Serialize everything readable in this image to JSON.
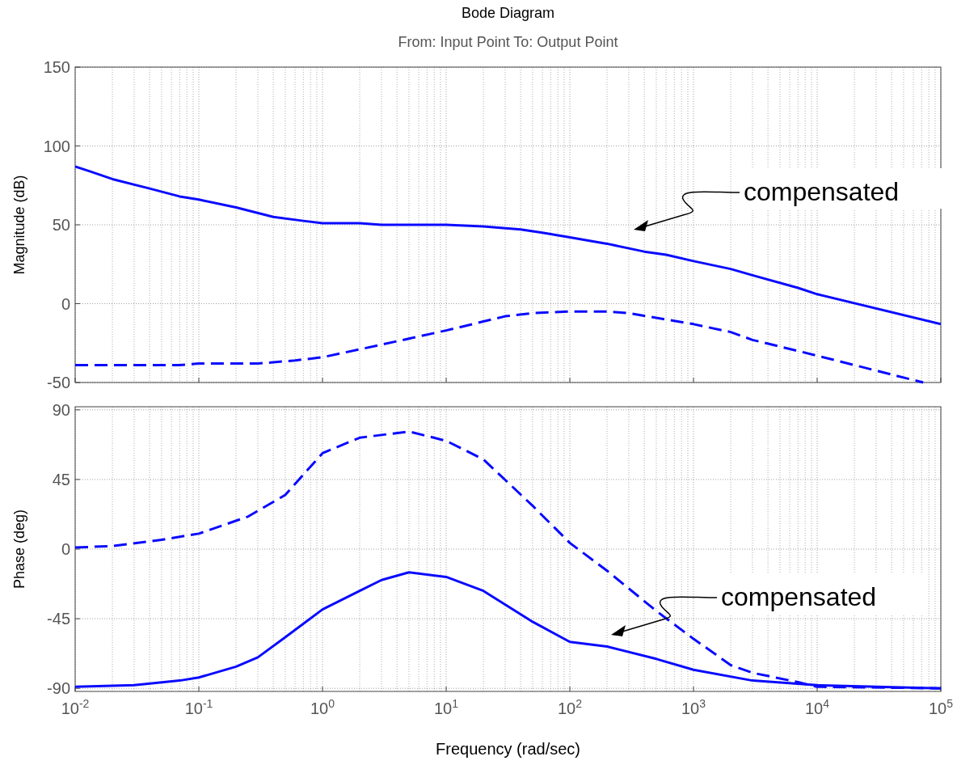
{
  "chart_data": [
    {
      "type": "line",
      "title": "Bode Diagram",
      "subtitle": "From: Input Point  To: Output Point",
      "ylabel": "Magnitude (dB)",
      "log": "x",
      "grid": true,
      "tick_labels": "y",
      "line_style": "solid",
      "xlim": [
        0.01,
        100000
      ],
      "xticks": [
        {
          "value": 0.01,
          "label": null
        },
        {
          "value": 0.1,
          "label": null
        },
        {
          "value": 1,
          "label": null
        },
        {
          "value": 10,
          "label": null
        },
        {
          "value": 100,
          "label": null
        },
        {
          "value": 1000,
          "label": null
        },
        {
          "value": 10000,
          "label": null
        },
        {
          "value": 100000,
          "label": null
        }
      ],
      "ylim": [
        -50,
        150
      ],
      "yticks": [
        -50,
        0,
        50,
        100,
        150
      ],
      "series": [
        {
          "color": "#0a0aff",
          "x": [
            0.01,
            0.013,
            0.02,
            0.04,
            0.07,
            0.1,
            0.2,
            0.4,
            0.7,
            1,
            2,
            3,
            10,
            20,
            40,
            60,
            100,
            200,
            400,
            600,
            1000,
            2000,
            3000,
            7000,
            10000,
            100000
          ],
          "values": [
            87,
            84,
            79,
            73,
            68,
            66,
            61,
            55,
            52.5,
            51,
            51,
            50,
            50,
            49,
            47,
            45,
            42,
            38,
            33,
            31,
            27,
            22,
            18,
            10,
            6,
            -13
          ]
        },
        {
          "color": "#0a0aff",
          "line_style": "dashed",
          "x": [
            0.01,
            0.07,
            0.1,
            0.3,
            0.6,
            1,
            3,
            10,
            30,
            50,
            100,
            200,
            300,
            500,
            1000,
            2000,
            3000,
            7000,
            10000,
            72000
          ],
          "values": [
            -39,
            -39,
            -38,
            -38,
            -36,
            -34,
            -26,
            -17,
            -8,
            -6,
            -5,
            -5,
            -6,
            -9,
            -13,
            -18,
            -23,
            -30,
            -33,
            -50
          ]
        }
      ],
      "annotations": [
        "compensated"
      ]
    },
    {
      "type": "line",
      "xlabel": "Frequency  (rad/sec)",
      "ylabel": "Phase (deg)",
      "log": "x",
      "grid": true,
      "line_style": "solid",
      "xlim": [
        0.01,
        100000
      ],
      "xticks": [
        {
          "value": 0.01,
          "label": "10$^{-2}$"
        },
        {
          "value": 0.1,
          "label": "10$^{-1}$"
        },
        {
          "value": 1,
          "label": "10$^{0}$"
        },
        {
          "value": 10,
          "label": "10$^{1}$"
        },
        {
          "value": 100,
          "label": "10$^{2}$"
        },
        {
          "value": 1000,
          "label": "10$^{3}$"
        },
        {
          "value": 10000,
          "label": "10$^{4}$"
        },
        {
          "value": 100000,
          "label": "10$^{5}$"
        }
      ],
      "ylim": [
        -92,
        92
      ],
      "yticks": [
        -90,
        -45,
        0,
        45,
        90
      ],
      "series": [
        {
          "color": "#0a0aff",
          "line_style": "dashed",
          "x": [
            0.01,
            0.02,
            0.05,
            0.1,
            0.25,
            0.5,
            1,
            2,
            5,
            10,
            20,
            50,
            100,
            200,
            500,
            1000,
            2000,
            3000,
            7000,
            10000,
            100000
          ],
          "values": [
            1,
            2,
            6,
            10,
            21,
            35,
            62,
            72,
            76,
            70,
            58,
            28,
            4,
            -14,
            -40,
            -58,
            -75,
            -80,
            -86,
            -89,
            -90
          ]
        },
        {
          "color": "#0a0aff",
          "x": [
            0.01,
            0.03,
            0.07,
            0.1,
            0.2,
            0.3,
            0.5,
            1,
            2,
            3,
            5,
            10,
            20,
            50,
            100,
            200,
            500,
            1000,
            3000,
            10000,
            100000
          ],
          "values": [
            -89,
            -88,
            -85,
            -83,
            -76,
            -70,
            -57,
            -39,
            -27,
            -20,
            -15,
            -18,
            -27,
            -47,
            -60,
            -63,
            -71,
            -78,
            -85,
            -88,
            -90
          ]
        }
      ],
      "annotations": [
        "compensated"
      ]
    }
  ]
}
